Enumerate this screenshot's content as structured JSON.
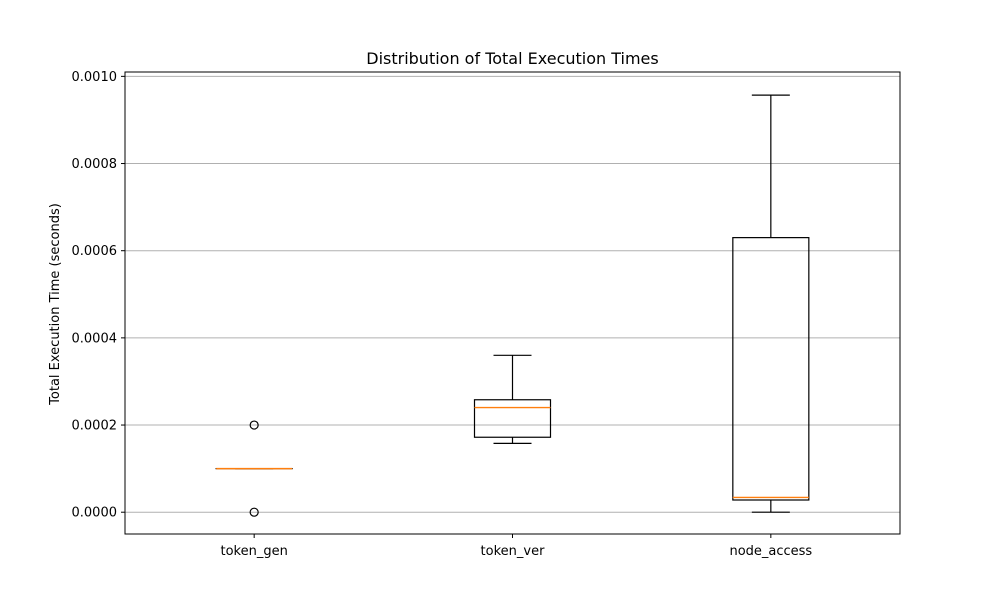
{
  "chart_data": {
    "type": "box",
    "title": "Distribution of Total Execution Times",
    "xlabel": "",
    "ylabel": "Total Execution Time (seconds)",
    "ylim": [
      -5e-05,
      0.00101
    ],
    "yticks": [
      0.0,
      0.0002,
      0.0004,
      0.0006,
      0.0008,
      0.001
    ],
    "ytick_labels": [
      "0.0000",
      "0.0002",
      "0.0004",
      "0.0006",
      "0.0008",
      "0.0010"
    ],
    "grid": "y",
    "categories": [
      "token_gen",
      "token_ver",
      "node_access"
    ],
    "boxes": [
      {
        "category": "token_gen",
        "whisker_low": 0.0001,
        "q1": 0.0001,
        "median": 0.0001,
        "q3": 0.0001,
        "whisker_high": 0.0001,
        "outliers": [
          0.0002,
          0.0
        ]
      },
      {
        "category": "token_ver",
        "whisker_low": 0.000158,
        "q1": 0.000172,
        "median": 0.00024,
        "q3": 0.000258,
        "whisker_high": 0.00036,
        "outliers": []
      },
      {
        "category": "node_access",
        "whisker_low": 0.0,
        "q1": 2.8e-05,
        "median": 3.4e-05,
        "q3": 0.00063,
        "whisker_high": 0.000957,
        "outliers": []
      }
    ],
    "colors": {
      "box": "#000000",
      "median": "#ff7f0e",
      "grid": "#b0b0b0"
    }
  }
}
